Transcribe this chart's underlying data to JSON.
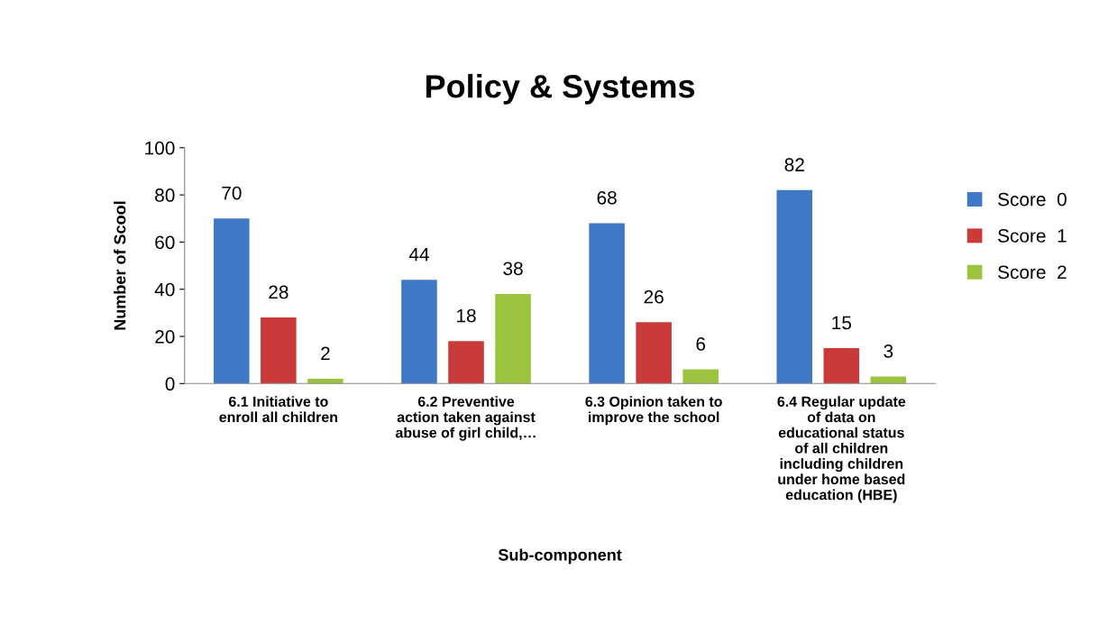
{
  "chart_data": {
    "type": "bar",
    "title": "Policy & Systems",
    "xlabel": "Sub-component",
    "ylabel": "Number of Scool",
    "categories": [
      "6.1 Initiative to\nenroll all children",
      "6.2 Preventive\naction taken against\nabuse of girl child,…",
      "6.3 Opinion taken to\nimprove the school",
      "6.4 Regular update\nof data on\neducational status\nof all children\nincluding children\nunder home based\neducation (HBE)"
    ],
    "series": [
      {
        "name": "Score  0",
        "color": "#3f78c6",
        "values": [
          70,
          44,
          68,
          82
        ]
      },
      {
        "name": "Score  1",
        "color": "#c83b38",
        "values": [
          28,
          18,
          26,
          15
        ]
      },
      {
        "name": "Score  2",
        "color": "#9bc33e",
        "values": [
          2,
          38,
          6,
          3
        ]
      }
    ],
    "ylim": [
      0,
      100
    ],
    "yticks": [
      0,
      20,
      40,
      60,
      80,
      100
    ],
    "grid": false,
    "legend": "right",
    "data_labels": true
  }
}
